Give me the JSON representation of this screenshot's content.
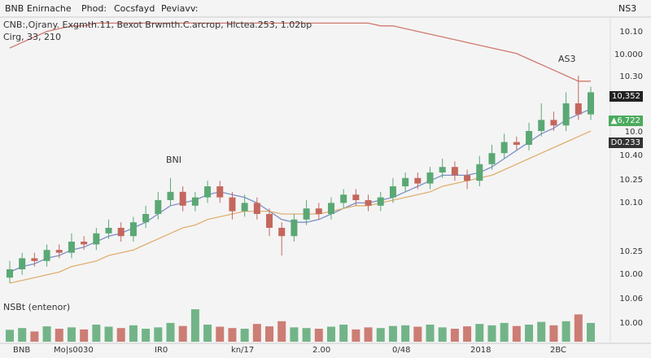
{
  "chart_data": {
    "type": "candlestick",
    "toolbar": [
      "BNB Enirnache",
      "Phod:",
      "Cocsfayd",
      "Peviavv:"
    ],
    "corner_label": "NS3",
    "info_line": "CNB:,Ojrany. Exgmth.11, Bexot Brwmth.C.arcrop, Hlctea.253, 1.02bp",
    "info_line2": "Cirg, 33, 210",
    "annotations": [
      "BNI",
      "AS3"
    ],
    "volume_label": "NSBt (entenor)",
    "price_labels": [
      "10.10",
      "10.000",
      "10.30",
      "10,352",
      "▲6,722",
      "10.0",
      "D0.233",
      "10.40",
      "10.25",
      "10.10",
      "10.25",
      "10.00",
      "10.06",
      "10.00"
    ],
    "time_labels": [
      "BNB",
      "Mo|s0030",
      "IR0",
      "kn/17",
      "2.00",
      "0/48",
      "2018",
      "2BC"
    ],
    "up_color": "#5aa874",
    "down_color": "#c4675d",
    "ylim": [
      0,
      100
    ],
    "volume_ylim": [
      0,
      100
    ],
    "candles": {
      "open": [
        7,
        10,
        14,
        13,
        17,
        16,
        20,
        19,
        23,
        25,
        22,
        27,
        30,
        35,
        38,
        33,
        36,
        40,
        36,
        31,
        34,
        30,
        25,
        22,
        28,
        32,
        30,
        34,
        37,
        35,
        33,
        36,
        40,
        43,
        41,
        45,
        47,
        44,
        42,
        48,
        52,
        56,
        55,
        60,
        64,
        62,
        70,
        66
      ],
      "high": [
        13,
        16,
        16,
        19,
        19,
        23,
        22,
        25,
        28,
        27,
        29,
        33,
        38,
        43,
        40,
        38,
        42,
        42,
        38,
        37,
        36,
        32,
        27,
        30,
        35,
        34,
        36,
        39,
        39,
        37,
        38,
        43,
        45,
        45,
        47,
        50,
        49,
        46,
        51,
        55,
        59,
        58,
        63,
        70,
        67,
        74,
        80,
        76
      ],
      "low": [
        5,
        8,
        11,
        11,
        14,
        14,
        17,
        17,
        21,
        20,
        20,
        25,
        28,
        33,
        31,
        31,
        34,
        34,
        28,
        29,
        28,
        22,
        15,
        20,
        26,
        28,
        28,
        32,
        33,
        31,
        31,
        34,
        38,
        39,
        39,
        43,
        42,
        39,
        40,
        46,
        50,
        53,
        53,
        58,
        60,
        60,
        64,
        64
      ],
      "close": [
        10,
        14,
        13,
        17,
        16,
        20,
        19,
        23,
        25,
        22,
        27,
        30,
        35,
        38,
        33,
        36,
        40,
        36,
        31,
        34,
        30,
        25,
        22,
        28,
        32,
        30,
        34,
        37,
        35,
        33,
        36,
        40,
        43,
        41,
        45,
        47,
        44,
        42,
        48,
        52,
        56,
        55,
        60,
        64,
        62,
        70,
        66,
        74
      ]
    },
    "volume": [
      35,
      40,
      30,
      45,
      38,
      42,
      36,
      50,
      44,
      40,
      48,
      38,
      42,
      55,
      46,
      95,
      50,
      44,
      40,
      38,
      52,
      45,
      60,
      42,
      40,
      38,
      44,
      50,
      36,
      42,
      40,
      46,
      48,
      44,
      50,
      42,
      38,
      45,
      52,
      48,
      55,
      46,
      50,
      58,
      48,
      60,
      80,
      55
    ],
    "series": [
      {
        "color": "#7b8fc6",
        "values": [
          9,
          11,
          12,
          14,
          15,
          17,
          18,
          20,
          22,
          23,
          25,
          27,
          30,
          33,
          34,
          35,
          37,
          38,
          37,
          36,
          34,
          31,
          28,
          27,
          27,
          28,
          30,
          32,
          34,
          34,
          35,
          36,
          38,
          40,
          42,
          44,
          44,
          44,
          45,
          47,
          50,
          53,
          56,
          59,
          61,
          64,
          66,
          68
        ]
      },
      {
        "color": "#e0b070",
        "values": [
          5,
          6,
          7,
          8,
          9,
          11,
          12,
          13,
          15,
          16,
          17,
          19,
          21,
          23,
          25,
          26,
          28,
          29,
          30,
          31,
          31,
          31,
          30,
          30,
          30,
          30,
          31,
          32,
          33,
          33,
          34,
          35,
          36,
          37,
          38,
          40,
          41,
          42,
          43,
          44,
          46,
          48,
          50,
          52,
          54,
          56,
          58,
          60
        ]
      },
      {
        "color": "#d07a70",
        "values": [
          90,
          92,
          94,
          96,
          97,
          98,
          98,
          99,
          99,
          99,
          99,
          99,
          99,
          99,
          99,
          99,
          99,
          99,
          99,
          99,
          99,
          99,
          99,
          99,
          99,
          99,
          99,
          99,
          99,
          99,
          98,
          98,
          97,
          96,
          95,
          94,
          93,
          92,
          91,
          90,
          89,
          88,
          86,
          84,
          82,
          80,
          78,
          78
        ]
      }
    ]
  }
}
